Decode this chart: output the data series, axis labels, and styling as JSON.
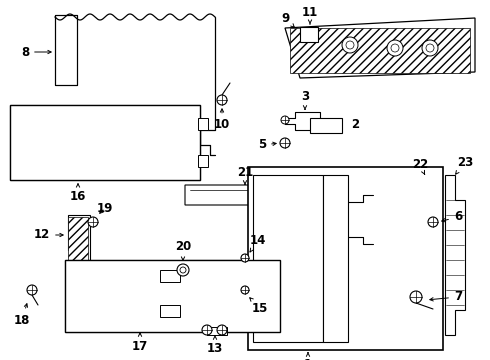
{
  "bg_color": "#ffffff",
  "line_color": "#000000",
  "font_size": 7.5,
  "label_font_size": 8.5,
  "fig_w": 4.9,
  "fig_h": 3.6,
  "dpi": 100
}
